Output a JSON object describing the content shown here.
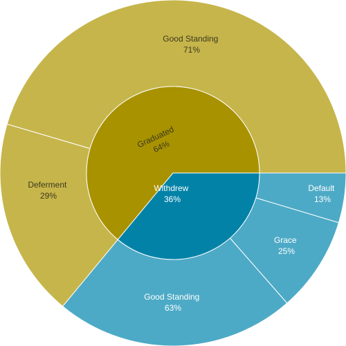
{
  "chart_data": {
    "type": "sunburst",
    "title": "",
    "inner": [
      {
        "label": "Graduated",
        "pct": "64%",
        "value": 64,
        "color": "#a89200"
      },
      {
        "label": "Withdrew",
        "pct": "36%",
        "value": 36,
        "color": "#0382a8"
      }
    ],
    "outer": [
      {
        "parent": "Graduated",
        "label": "Good Standing",
        "pct": "71%",
        "value": 71,
        "color": "#c6b54b"
      },
      {
        "parent": "Graduated",
        "label": "Deferment",
        "pct": "29%",
        "value": 29,
        "color": "#c6b54b"
      },
      {
        "parent": "Withdrew",
        "label": "Good Standing",
        "pct": "63%",
        "value": 63,
        "color": "#4daac6"
      },
      {
        "parent": "Withdrew",
        "label": "Grace",
        "pct": "25%",
        "value": 25,
        "color": "#4daac6"
      },
      {
        "parent": "Withdrew",
        "label": "Default",
        "pct": "13%",
        "value": 13,
        "color": "#4daac6"
      }
    ]
  }
}
